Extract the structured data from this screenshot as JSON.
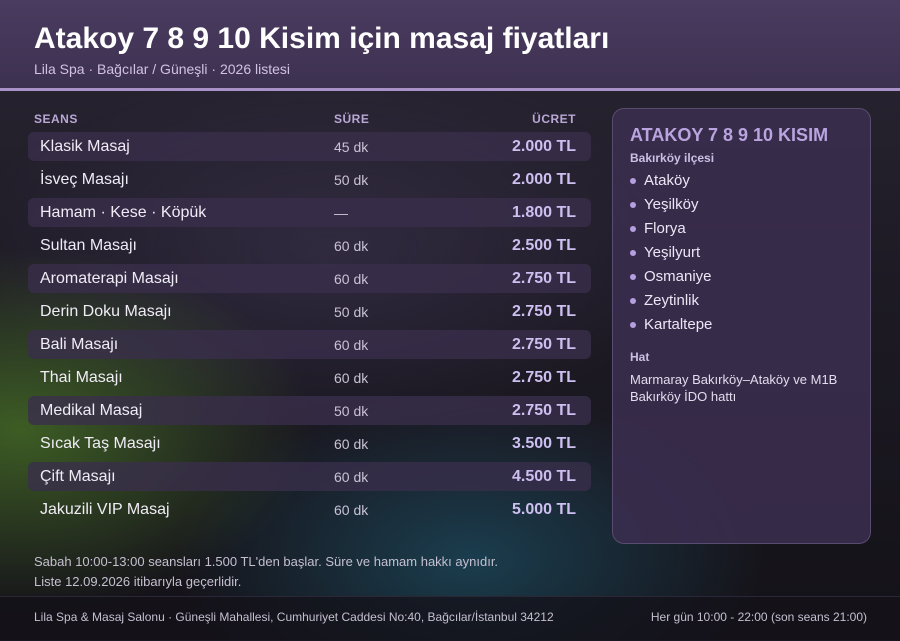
{
  "header": {
    "title": "Atakoy 7 8 9 10 Kisim için masaj fiyatları",
    "subtitle": "Lila Spa · Bağcılar / Güneşli · 2026 listesi"
  },
  "table": {
    "columns": {
      "name": "SEANS",
      "duration": "SÜRE",
      "price": "ÜCRET"
    },
    "rows": [
      {
        "name": "Klasik Masaj",
        "duration": "45 dk",
        "price": "2.000 TL"
      },
      {
        "name": "İsveç Masajı",
        "duration": "50 dk",
        "price": "2.000 TL"
      },
      {
        "name": "Hamam · Kese · Köpük",
        "duration": "—",
        "price": "1.800 TL"
      },
      {
        "name": "Sultan Masajı",
        "duration": "60 dk",
        "price": "2.500 TL"
      },
      {
        "name": "Aromaterapi Masajı",
        "duration": "60 dk",
        "price": "2.750 TL"
      },
      {
        "name": "Derin Doku Masajı",
        "duration": "50 dk",
        "price": "2.750 TL"
      },
      {
        "name": "Bali Masajı",
        "duration": "60 dk",
        "price": "2.750 TL"
      },
      {
        "name": "Thai Masajı",
        "duration": "60 dk",
        "price": "2.750 TL"
      },
      {
        "name": "Medikal Masaj",
        "duration": "50 dk",
        "price": "2.750 TL"
      },
      {
        "name": "Sıcak Taş Masajı",
        "duration": "60 dk",
        "price": "3.500 TL"
      },
      {
        "name": "Çift Masajı",
        "duration": "60 dk",
        "price": "4.500 TL"
      },
      {
        "name": "Jakuzili VIP Masaj",
        "duration": "60 dk",
        "price": "5.000 TL"
      }
    ]
  },
  "sidebar": {
    "title": "ATAKOY 7 8 9 10 KISIM",
    "district_label": "Bakırköy ilçesi",
    "areas": [
      "Ataköy",
      "Yeşilköy",
      "Florya",
      "Yeşilyurt",
      "Osmaniye",
      "Zeytinlik",
      "Kartaltepe"
    ],
    "transit_label": "Hat",
    "transit_text": "Marmaray Bakırköy–Ataköy ve M1B Bakırköy İDO hattı"
  },
  "note": {
    "line1": "Sabah 10:00-13:00 seansları 1.500 TL'den başlar. Süre ve hamam hakkı aynıdır.",
    "line2": "Liste 12.09.2026 itibarıyla geçerlidir."
  },
  "footer": {
    "address": "Lila Spa & Masaj Salonu · Güneşli Mahallesi, Cumhuriyet Caddesi No:40, Bağcılar/İstanbul 34212",
    "hours": "Her gün 10:00 - 22:00 (son seans 21:00)"
  },
  "colors": {
    "header_bg": "#4a3b60",
    "accent": "#a892c8",
    "price": "#cdbff0",
    "sidebar_title": "#b9a4e0"
  }
}
